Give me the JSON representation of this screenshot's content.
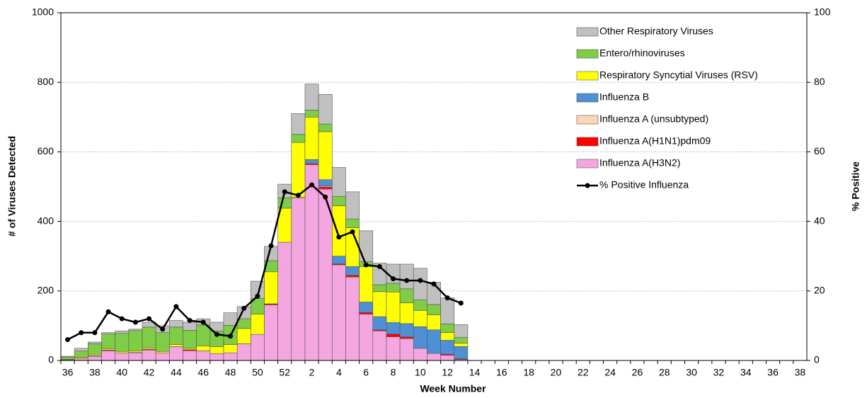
{
  "chart_data": {
    "type": "stacked-bar-line",
    "categories": [
      "36",
      null,
      "38",
      null,
      "40",
      null,
      "42",
      null,
      "44",
      null,
      "46",
      null,
      "48",
      null,
      "50",
      null,
      "52",
      null,
      "2",
      null,
      "4",
      null,
      "6",
      null,
      "8",
      null,
      "10",
      null,
      "12",
      null,
      "14",
      null,
      "16",
      null,
      "18",
      null,
      "20",
      null,
      "22",
      null,
      "24",
      null,
      "26",
      null,
      "28",
      null,
      "30",
      null,
      "32",
      null,
      "34",
      null,
      "36",
      null,
      "38"
    ],
    "x_label": "Week Number",
    "y_label": "# of Viruses Detected",
    "y2_label": "% Positive",
    "ylim": [
      0,
      1000
    ],
    "yticks": [
      0,
      200,
      400,
      600,
      800,
      1000
    ],
    "y2lim": [
      0,
      100
    ],
    "y2ticks": [
      0,
      20,
      40,
      60,
      80,
      100
    ],
    "grid": true,
    "legend": "upper right",
    "series": [
      {
        "name": "Influenza A(H3N2)",
        "color": "#f4a6e0",
        "values": [
          2,
          6,
          12,
          28,
          22,
          22,
          30,
          22,
          40,
          28,
          28,
          20,
          22,
          48,
          75,
          160,
          340,
          467,
          563,
          493,
          275,
          240,
          133,
          85,
          68,
          63,
          35,
          20,
          15,
          3,
          null,
          null,
          null,
          null,
          null,
          null,
          null,
          null,
          null,
          null,
          null,
          null,
          null,
          null,
          null,
          null,
          null,
          null,
          null,
          null,
          null,
          null,
          null,
          null,
          null
        ]
      },
      {
        "name": "Influenza A(H1N1)pdm09",
        "color": "#ff0000",
        "values": [
          0,
          0,
          0,
          2,
          0,
          0,
          2,
          0,
          0,
          3,
          0,
          0,
          0,
          0,
          0,
          3,
          0,
          0,
          3,
          6,
          3,
          5,
          5,
          3,
          8,
          5,
          0,
          0,
          3,
          2,
          null,
          null,
          null,
          null,
          null,
          null,
          null,
          null,
          null,
          null,
          null,
          null,
          null,
          null,
          null,
          null,
          null,
          null,
          null,
          null,
          null,
          null,
          null,
          null,
          null
        ]
      },
      {
        "name": "Influenza A (unsubtyped)",
        "color": "#fcd5b4",
        "values": [
          0,
          0,
          0,
          0,
          0,
          2,
          0,
          0,
          0,
          0,
          0,
          0,
          0,
          0,
          0,
          0,
          0,
          3,
          2,
          3,
          0,
          0,
          0,
          0,
          0,
          0,
          0,
          0,
          0,
          0,
          null,
          null,
          null,
          null,
          null,
          null,
          null,
          null,
          null,
          null,
          null,
          null,
          null,
          null,
          null,
          null,
          null,
          null,
          null,
          null,
          null,
          null,
          null,
          null,
          null
        ]
      },
      {
        "name": "Influenza B",
        "color": "#4f8fd6",
        "values": [
          0,
          0,
          2,
          0,
          0,
          0,
          0,
          0,
          0,
          0,
          0,
          0,
          0,
          0,
          0,
          0,
          0,
          0,
          10,
          18,
          22,
          25,
          30,
          38,
          33,
          38,
          62,
          68,
          40,
          35,
          null,
          null,
          null,
          null,
          null,
          null,
          null,
          null,
          null,
          null,
          null,
          null,
          null,
          null,
          null,
          null,
          null,
          null,
          null,
          null,
          null,
          null,
          null,
          null,
          null
        ]
      },
      {
        "name": "Respiratory Syncytial Viruses (RSV)",
        "color": "#ffff00",
        "values": [
          1,
          3,
          4,
          4,
          4,
          4,
          4,
          4,
          6,
          4,
          14,
          20,
          24,
          44,
          58,
          92,
          98,
          157,
          122,
          138,
          145,
          112,
          102,
          72,
          88,
          60,
          47,
          43,
          22,
          10,
          null,
          null,
          null,
          null,
          null,
          null,
          null,
          null,
          null,
          null,
          null,
          null,
          null,
          null,
          null,
          null,
          null,
          null,
          null,
          null,
          null,
          null,
          null,
          null,
          null
        ]
      },
      {
        "name": "Entero/rhinoviruses",
        "color": "#7fcc46",
        "values": [
          7,
          18,
          30,
          42,
          52,
          58,
          60,
          54,
          50,
          52,
          60,
          45,
          55,
          28,
          45,
          32,
          30,
          23,
          20,
          22,
          27,
          25,
          14,
          20,
          25,
          40,
          30,
          30,
          25,
          16,
          null,
          null,
          null,
          null,
          null,
          null,
          null,
          null,
          null,
          null,
          null,
          null,
          null,
          null,
          null,
          null,
          null,
          null,
          null,
          null,
          null,
          null,
          null,
          null,
          null
        ]
      },
      {
        "name": "Other Respiratory Viruses",
        "color": "#c0c0c0",
        "values": [
          2,
          8,
          5,
          4,
          7,
          4,
          14,
          20,
          19,
          23,
          18,
          25,
          36,
          35,
          50,
          41,
          39,
          60,
          75,
          85,
          83,
          78,
          89,
          62,
          55,
          71,
          91,
          64,
          75,
          37,
          null,
          null,
          null,
          null,
          null,
          null,
          null,
          null,
          null,
          null,
          null,
          null,
          null,
          null,
          null,
          null,
          null,
          null,
          null,
          null,
          null,
          null,
          null,
          null,
          null
        ]
      },
      {
        "name": "% Positive Influenza",
        "color": "#000000",
        "axis": "y2",
        "values": [
          6,
          8,
          8,
          14,
          12,
          11,
          12,
          9,
          15.5,
          11.5,
          11,
          7.5,
          7,
          15,
          18.5,
          33,
          48.5,
          47.5,
          50.5,
          47,
          35.5,
          37,
          27.5,
          27,
          23.5,
          23,
          23,
          22,
          18,
          16.5,
          null,
          null,
          null,
          null,
          null,
          null,
          null,
          null,
          null,
          null,
          null,
          null,
          null,
          null,
          null,
          null,
          null,
          null,
          null,
          null,
          null,
          null,
          null,
          null,
          null
        ]
      }
    ]
  }
}
